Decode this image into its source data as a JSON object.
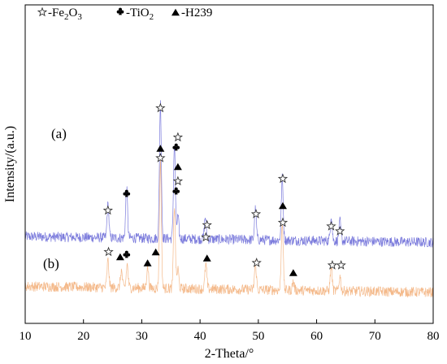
{
  "chart_data": {
    "type": "line",
    "xlabel": "2-Theta/°",
    "ylabel": "Intensity/(a.u.)",
    "xlim": [
      10,
      80
    ],
    "x_ticks": [
      "10",
      "20",
      "30",
      "40",
      "50",
      "60",
      "70",
      "80"
    ],
    "grid": false,
    "legend": {
      "placement": "top-left",
      "entries": [
        {
          "icon": "star-icon",
          "prefix": "-Fe",
          "sub1": "2",
          "mid": "O",
          "sub2": "3"
        },
        {
          "icon": "club-icon",
          "prefix": "-TiO",
          "sub1": "2",
          "mid": "",
          "sub2": ""
        },
        {
          "icon": "triangle-icon",
          "prefix": "-H239",
          "sub1": "",
          "mid": "",
          "sub2": ""
        }
      ]
    },
    "series": [
      {
        "label": "(a)",
        "color": "#7b7bdc",
        "baseline": 0.63,
        "baseline_end": 0.39,
        "peaks": [
          {
            "x": 24.2,
            "h": 1.35
          },
          {
            "x": 27.4,
            "h": 2.05
          },
          {
            "x": 33.2,
            "h": 5.6
          },
          {
            "x": 35.6,
            "h": 3.85
          },
          {
            "x": 36.2,
            "h": 0.9
          },
          {
            "x": 40.9,
            "h": 0.9
          },
          {
            "x": 49.5,
            "h": 1.25
          },
          {
            "x": 54.1,
            "h": 2.55
          },
          {
            "x": 62.5,
            "h": 1.05
          },
          {
            "x": 64.0,
            "h": 0.8
          }
        ]
      },
      {
        "label": "(b)",
        "color": "#f4b98a",
        "baseline": -1.41,
        "baseline_end": -1.66,
        "peaks": [
          {
            "x": 24.2,
            "h": 1.1
          },
          {
            "x": 26.5,
            "h": 0.7
          },
          {
            "x": 27.5,
            "h": 0.95
          },
          {
            "x": 31.0,
            "h": 0.9
          },
          {
            "x": 33.2,
            "h": 5.25
          },
          {
            "x": 35.6,
            "h": 3.4
          },
          {
            "x": 36.2,
            "h": 0.8
          },
          {
            "x": 41.0,
            "h": 1.0
          },
          {
            "x": 49.5,
            "h": 1.1
          },
          {
            "x": 54.1,
            "h": 2.85
          },
          {
            "x": 56.0,
            "h": 0.35
          },
          {
            "x": 62.5,
            "h": 1.0
          },
          {
            "x": 64.0,
            "h": 0.6
          }
        ]
      }
    ],
    "markers": [
      {
        "type": "star",
        "x": 24.2,
        "y": 1.7
      },
      {
        "type": "club",
        "x": 27.4,
        "y": 2.4
      },
      {
        "type": "star",
        "x": 33.2,
        "y": 5.9
      },
      {
        "type": "star",
        "x": 36.2,
        "y": 4.7
      },
      {
        "type": "club",
        "x": 35.9,
        "y": 4.3
      },
      {
        "type": "star",
        "x": 41.2,
        "y": 1.1
      },
      {
        "type": "star",
        "x": 49.6,
        "y": 1.55
      },
      {
        "type": "star",
        "x": 54.2,
        "y": 3.0
      },
      {
        "type": "star",
        "x": 62.5,
        "y": 1.05
      },
      {
        "type": "star",
        "x": 64.0,
        "y": 0.85
      },
      {
        "type": "triangle",
        "x": 33.2,
        "y": 4.25
      },
      {
        "type": "star",
        "x": 33.2,
        "y": 3.85
      },
      {
        "type": "triangle",
        "x": 36.2,
        "y": 3.5
      },
      {
        "type": "star",
        "x": 36.2,
        "y": 2.9
      },
      {
        "type": "club",
        "x": 35.9,
        "y": 2.5
      },
      {
        "type": "star",
        "x": 24.3,
        "y": 0.0
      },
      {
        "type": "triangle",
        "x": 26.3,
        "y": -0.2
      },
      {
        "type": "club",
        "x": 27.4,
        "y": -0.1
      },
      {
        "type": "triangle",
        "x": 31.0,
        "y": -0.45
      },
      {
        "type": "triangle",
        "x": 32.4,
        "y": 0.0
      },
      {
        "type": "star",
        "x": 41.0,
        "y": 0.6
      },
      {
        "type": "triangle",
        "x": 41.2,
        "y": -0.25
      },
      {
        "type": "star",
        "x": 49.7,
        "y": -0.45
      },
      {
        "type": "triangle",
        "x": 54.2,
        "y": 1.9
      },
      {
        "type": "star",
        "x": 54.2,
        "y": 1.2
      },
      {
        "type": "triangle",
        "x": 56.0,
        "y": -0.85
      },
      {
        "type": "star",
        "x": 62.7,
        "y": -0.55
      },
      {
        "type": "star",
        "x": 64.2,
        "y": -0.55
      }
    ]
  }
}
